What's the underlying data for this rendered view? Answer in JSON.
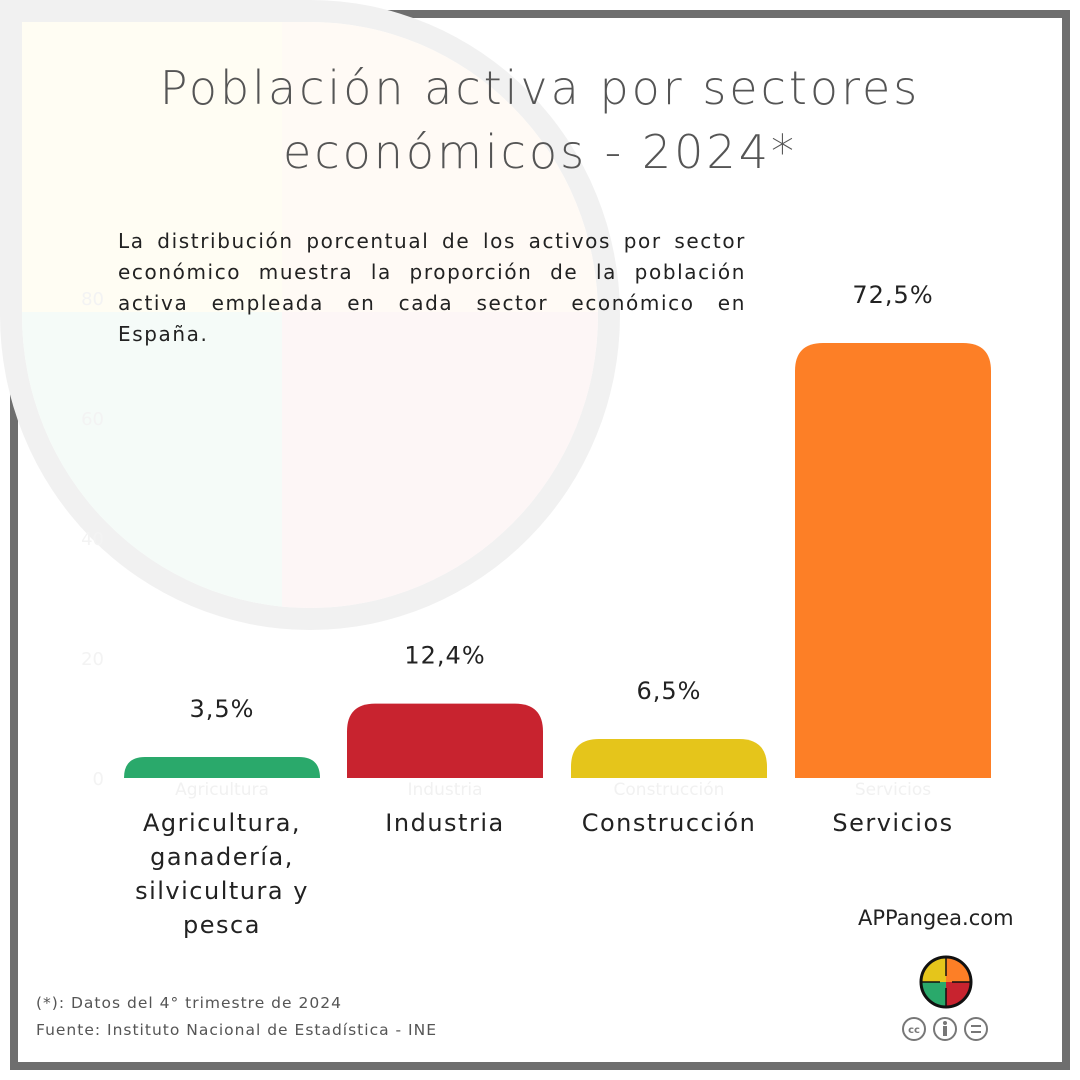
{
  "title": "Población activa por sectores económicos - 2024*",
  "description": "La distribución porcentual de los activos por sector económico muestra la proporción de la población activa empleada en cada sector económico en España.",
  "chart_data": {
    "type": "bar",
    "categories": [
      "Agricultura",
      "Industria",
      "Construcción",
      "Servicios"
    ],
    "category_display_labels": [
      "Agricultura, ganadería, silvicultura y pesca",
      "Industria",
      "Construcción",
      "Servicios"
    ],
    "values": [
      3.5,
      12.4,
      6.5,
      72.5
    ],
    "data_labels": [
      "3,5%",
      "12,4%",
      "6,5%",
      "72,5%"
    ],
    "colors": [
      "#2aa96b",
      "#c8232f",
      "#e5c51b",
      "#fd7f26"
    ],
    "yticks": [
      0,
      20,
      40,
      60,
      80
    ],
    "ylim": [
      0,
      80
    ],
    "grid": false,
    "unit": "%"
  },
  "site": "APPangea.com",
  "footnote": "(*): Datos del 4° trimestre de 2024",
  "source": "Fuente: Instituto Nacional de Estadística - INE"
}
